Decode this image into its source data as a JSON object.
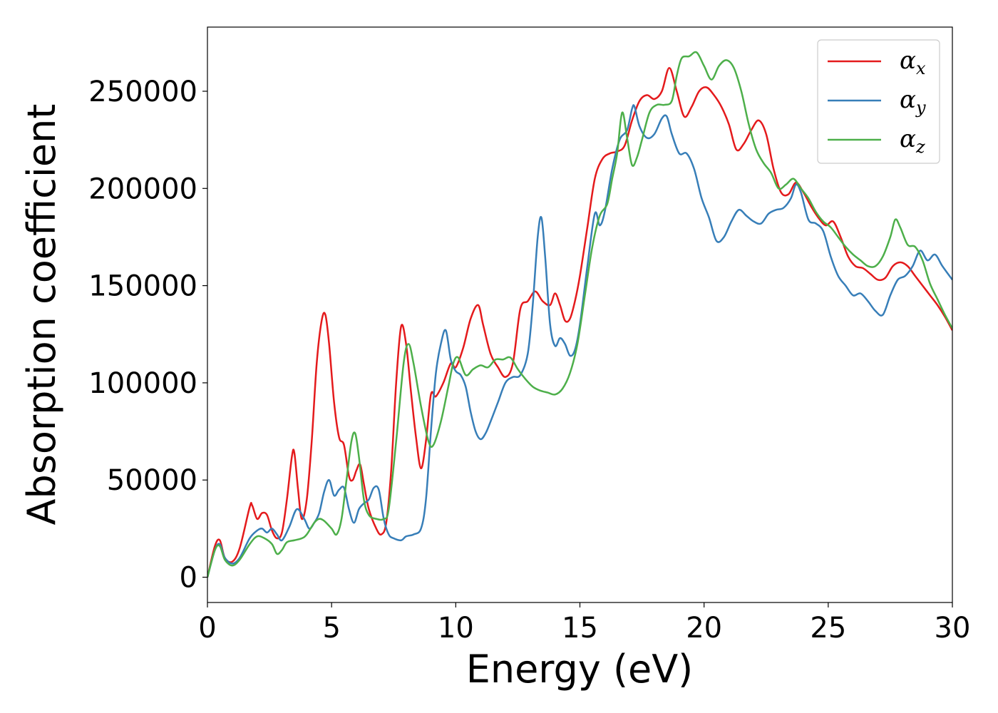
{
  "chart_data": {
    "type": "line",
    "title": "",
    "xlabel": "Energy (eV)",
    "ylabel": "Absorption coefficient",
    "xlim": [
      0,
      30
    ],
    "ylim": [
      -13000,
      283000
    ],
    "xticks": [
      0,
      5,
      10,
      15,
      20,
      25,
      30
    ],
    "yticks": [
      0,
      50000,
      100000,
      150000,
      200000,
      250000
    ],
    "grid": false,
    "legend_position": "top-right",
    "series": [
      {
        "name": "α",
        "subscript": "x",
        "color": "#e41a1c",
        "x": [
          0,
          0.3,
          0.5,
          0.7,
          1.0,
          1.3,
          1.7,
          1.8,
          2.0,
          2.2,
          2.4,
          2.6,
          2.8,
          3.0,
          3.2,
          3.4,
          3.5,
          3.65,
          3.8,
          4.0,
          4.2,
          4.4,
          4.6,
          4.75,
          4.9,
          5.1,
          5.3,
          5.5,
          5.7,
          5.85,
          6.0,
          6.15,
          6.3,
          6.5,
          6.8,
          7.0,
          7.2,
          7.4,
          7.6,
          7.8,
          8.0,
          8.2,
          8.4,
          8.6,
          8.8,
          9.0,
          9.2,
          9.5,
          9.8,
          10.0,
          10.3,
          10.6,
          10.9,
          11.1,
          11.4,
          11.7,
          12.0,
          12.3,
          12.6,
          12.9,
          13.2,
          13.5,
          13.8,
          14.0,
          14.2,
          14.4,
          14.6,
          14.8,
          15.0,
          15.3,
          15.6,
          15.9,
          16.2,
          16.5,
          16.8,
          17.1,
          17.4,
          17.7,
          18.0,
          18.3,
          18.6,
          18.9,
          19.2,
          19.5,
          19.8,
          20.1,
          20.4,
          20.7,
          21.0,
          21.3,
          21.6,
          21.9,
          22.2,
          22.5,
          22.8,
          23.1,
          23.4,
          23.7,
          24.0,
          24.3,
          24.6,
          24.9,
          25.2,
          25.5,
          25.8,
          26.1,
          26.4,
          26.7,
          27.0,
          27.3,
          27.6,
          27.9,
          28.2,
          28.5,
          28.8,
          29.1,
          29.4,
          29.7,
          30
        ],
        "y": [
          0,
          16000,
          19000,
          10000,
          8000,
          15000,
          36000,
          37000,
          30000,
          33000,
          32000,
          24000,
          20000,
          23000,
          40000,
          62000,
          64000,
          45000,
          30000,
          40000,
          70000,
          110000,
          132000,
          135000,
          120000,
          90000,
          72000,
          68000,
          52000,
          50000,
          55000,
          58000,
          48000,
          35000,
          25000,
          22000,
          28000,
          55000,
          100000,
          129000,
          120000,
          95000,
          72000,
          56000,
          70000,
          94000,
          93000,
          100000,
          110000,
          108000,
          118000,
          133000,
          140000,
          130000,
          115000,
          108000,
          103000,
          110000,
          138000,
          142000,
          147000,
          142000,
          140000,
          146000,
          140000,
          132000,
          133000,
          142000,
          155000,
          180000,
          205000,
          215000,
          218000,
          219000,
          222000,
          235000,
          245000,
          248000,
          246000,
          250000,
          262000,
          250000,
          237000,
          242000,
          250000,
          252000,
          248000,
          242000,
          233000,
          220000,
          223000,
          230000,
          235000,
          228000,
          210000,
          198000,
          197000,
          203000,
          198000,
          191000,
          185000,
          181000,
          183000,
          175000,
          165000,
          160000,
          159000,
          156000,
          153000,
          154000,
          160000,
          162000,
          160000,
          155000,
          150000,
          145000,
          140000,
          134000,
          127000
        ]
      },
      {
        "name": "α",
        "subscript": "y",
        "color": "#377eb8",
        "x": [
          0,
          0.3,
          0.5,
          0.7,
          1.0,
          1.3,
          1.7,
          2.0,
          2.2,
          2.4,
          2.6,
          2.8,
          3.0,
          3.3,
          3.6,
          3.9,
          4.1,
          4.3,
          4.5,
          4.7,
          4.9,
          5.1,
          5.3,
          5.5,
          5.7,
          5.9,
          6.1,
          6.3,
          6.5,
          6.7,
          6.9,
          7.1,
          7.3,
          7.5,
          7.8,
          8.0,
          8.3,
          8.6,
          8.8,
          9.0,
          9.2,
          9.4,
          9.6,
          9.8,
          10.0,
          10.2,
          10.4,
          10.6,
          10.8,
          11.0,
          11.2,
          11.4,
          11.7,
          12.0,
          12.3,
          12.6,
          12.9,
          13.1,
          13.3,
          13.45,
          13.6,
          13.8,
          14.0,
          14.2,
          14.4,
          14.6,
          14.8,
          15.0,
          15.3,
          15.6,
          15.8,
          16.0,
          16.3,
          16.6,
          16.9,
          17.1,
          17.2,
          17.4,
          17.7,
          18.0,
          18.3,
          18.5,
          18.7,
          19.0,
          19.3,
          19.6,
          19.9,
          20.2,
          20.5,
          20.8,
          21.1,
          21.4,
          21.7,
          22.0,
          22.3,
          22.6,
          22.9,
          23.2,
          23.5,
          23.7,
          23.9,
          24.2,
          24.5,
          24.8,
          25.1,
          25.4,
          25.7,
          26.0,
          26.3,
          26.6,
          26.9,
          27.2,
          27.5,
          27.8,
          28.1,
          28.4,
          28.7,
          29.0,
          29.3,
          29.6,
          30
        ],
        "y": [
          0,
          14000,
          17000,
          10000,
          7000,
          10000,
          20000,
          24000,
          25000,
          23000,
          25000,
          22000,
          19000,
          26000,
          35000,
          30000,
          25000,
          28000,
          33000,
          44000,
          50000,
          42000,
          45000,
          46000,
          35000,
          28000,
          35000,
          38000,
          40000,
          46000,
          45000,
          30000,
          22000,
          20000,
          19000,
          21000,
          22000,
          25000,
          40000,
          75000,
          105000,
          120000,
          127000,
          112000,
          106000,
          104000,
          98000,
          85000,
          75000,
          71000,
          74000,
          80000,
          90000,
          100000,
          103000,
          104000,
          115000,
          140000,
          175000,
          185000,
          165000,
          130000,
          119000,
          123000,
          120000,
          114000,
          117000,
          130000,
          160000,
          187000,
          181000,
          188000,
          210000,
          225000,
          230000,
          241000,
          242000,
          232000,
          226000,
          228000,
          236000,
          237000,
          228000,
          218000,
          218000,
          210000,
          195000,
          185000,
          173000,
          175000,
          183000,
          189000,
          186000,
          183000,
          182000,
          187000,
          189000,
          190000,
          195000,
          202000,
          198000,
          184000,
          182000,
          178000,
          165000,
          155000,
          150000,
          145000,
          146000,
          142000,
          137000,
          135000,
          145000,
          153000,
          155000,
          160000,
          168000,
          163000,
          166000,
          160000,
          153000
        ]
      },
      {
        "name": "α",
        "subscript": "z",
        "color": "#4daf4a",
        "x": [
          0,
          0.3,
          0.5,
          0.7,
          1.0,
          1.3,
          1.7,
          2.0,
          2.3,
          2.6,
          2.8,
          3.0,
          3.2,
          3.5,
          3.8,
          4.0,
          4.3,
          4.5,
          4.7,
          5.0,
          5.2,
          5.4,
          5.6,
          5.8,
          5.95,
          6.1,
          6.3,
          6.5,
          6.8,
          7.1,
          7.3,
          7.6,
          7.9,
          8.1,
          8.3,
          8.6,
          8.9,
          9.1,
          9.4,
          9.7,
          9.9,
          10.1,
          10.4,
          10.7,
          11.0,
          11.3,
          11.6,
          11.9,
          12.2,
          12.5,
          12.8,
          13.1,
          13.4,
          13.7,
          14.0,
          14.3,
          14.6,
          14.9,
          15.2,
          15.5,
          15.8,
          16.1,
          16.3,
          16.5,
          16.7,
          16.9,
          17.1,
          17.3,
          17.5,
          17.8,
          18.1,
          18.4,
          18.7,
          18.9,
          19.1,
          19.4,
          19.7,
          20.0,
          20.3,
          20.6,
          20.9,
          21.2,
          21.5,
          21.8,
          22.1,
          22.4,
          22.7,
          23.0,
          23.3,
          23.6,
          23.9,
          24.2,
          24.5,
          24.8,
          25.1,
          25.4,
          25.7,
          26.0,
          26.3,
          26.6,
          26.9,
          27.2,
          27.5,
          27.7,
          27.9,
          28.2,
          28.5,
          28.8,
          29.1,
          29.4,
          29.7,
          30
        ],
        "y": [
          0,
          14000,
          16000,
          9000,
          6000,
          9000,
          17000,
          21000,
          20000,
          17000,
          12000,
          14000,
          18000,
          19000,
          20000,
          22000,
          28000,
          30000,
          29000,
          25000,
          22000,
          30000,
          50000,
          70000,
          74000,
          62000,
          40000,
          32000,
          30000,
          30000,
          35000,
          70000,
          110000,
          120000,
          110000,
          88000,
          70000,
          68000,
          80000,
          98000,
          110000,
          113000,
          104000,
          107000,
          109000,
          108000,
          112000,
          112000,
          113000,
          107000,
          102000,
          98000,
          96000,
          95000,
          94000,
          97000,
          105000,
          120000,
          145000,
          170000,
          186000,
          192000,
          205000,
          218000,
          239000,
          226000,
          212000,
          216000,
          225000,
          239000,
          243000,
          243000,
          245000,
          258000,
          267000,
          268000,
          270000,
          263000,
          256000,
          263000,
          266000,
          262000,
          250000,
          233000,
          220000,
          213000,
          208000,
          200000,
          202000,
          205000,
          200000,
          195000,
          188000,
          183000,
          180000,
          175000,
          170000,
          166000,
          163000,
          160000,
          160000,
          165000,
          175000,
          184000,
          180000,
          171000,
          170000,
          163000,
          151000,
          143000,
          135000,
          128000
        ]
      }
    ]
  }
}
